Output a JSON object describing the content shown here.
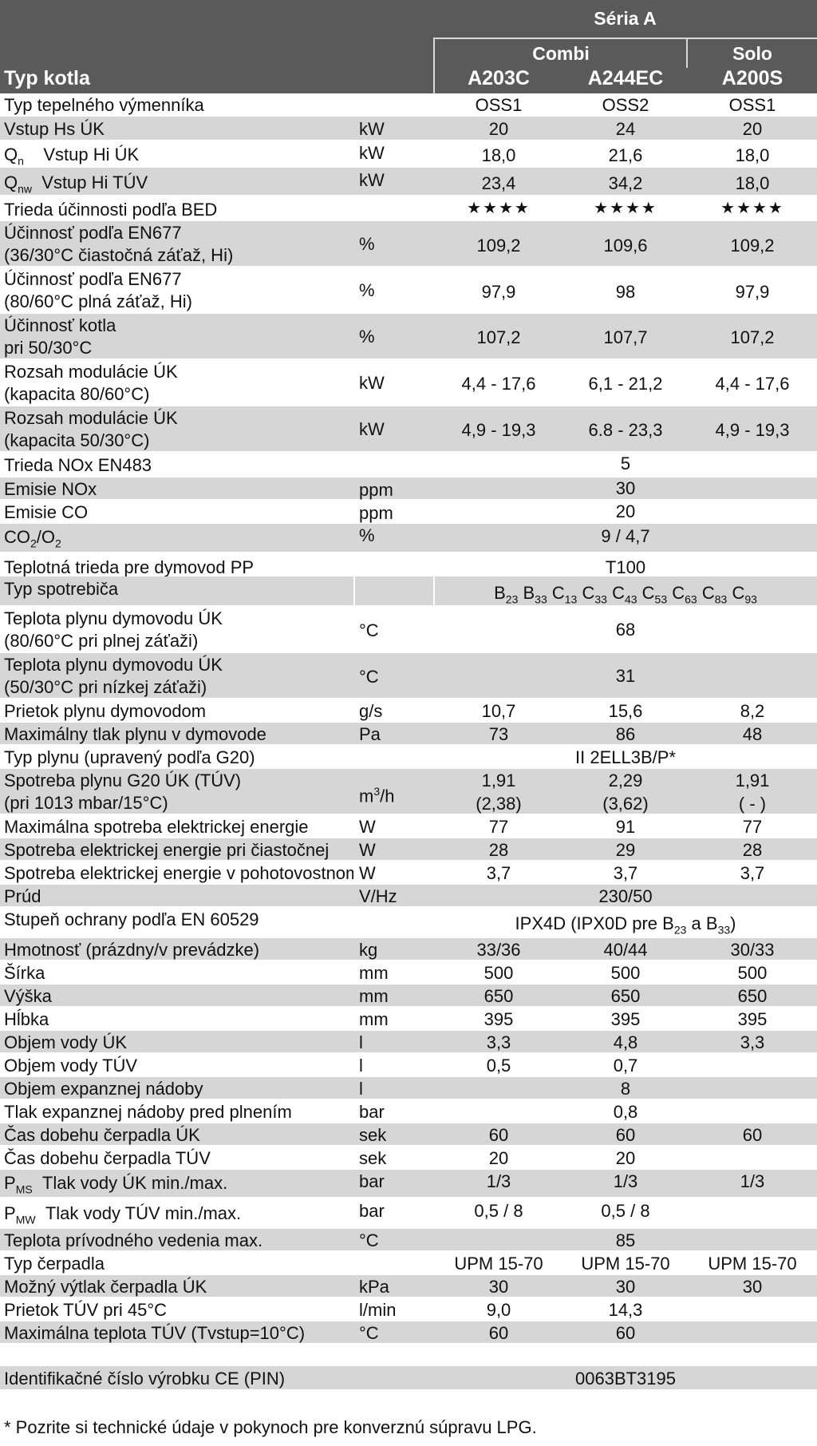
{
  "header": {
    "series": "Séria A",
    "group_combi": "Combi",
    "group_solo": "Solo",
    "typ_kotla": "Typ kotla",
    "models": [
      "A203C",
      "A244EC",
      "A200S"
    ]
  },
  "rows": {
    "r0": {
      "label": "Typ tepelného výmenníka",
      "unit": "",
      "v": [
        "OSS1",
        "OSS2",
        "OSS1"
      ]
    },
    "r1": {
      "label": "Vstup Hs ÚK",
      "unit": "kW",
      "v": [
        "20",
        "24",
        "20"
      ]
    },
    "r2": {
      "label_a": "Q",
      "label_sub": "n",
      "label_b": "Vstup Hi ÚK",
      "unit": "kW",
      "v": [
        "18,0",
        "21,6",
        "18,0"
      ]
    },
    "r3": {
      "label_a": "Q",
      "label_sub": "nw",
      "label_b": "Vstup Hi TÚV",
      "unit": "kW",
      "v": [
        "23,4",
        "34,2",
        "18,0"
      ]
    },
    "r4": {
      "label": "Trieda účinnosti podľa BED",
      "unit": "",
      "v": [
        "★★★★",
        "★★★★",
        "★★★★"
      ]
    },
    "r5": {
      "label": "Účinnosť podľa EN677",
      "label2": "(36/30°C čiastočná záťaž, Hi)",
      "unit": "%",
      "v": [
        "109,2",
        "109,6",
        "109,2"
      ]
    },
    "r6": {
      "label": "Účinnosť podľa EN677",
      "label2": "(80/60°C plná záťaž, Hi)",
      "unit": "%",
      "v": [
        "97,9",
        "98",
        "97,9"
      ]
    },
    "r7": {
      "label": "Účinnosť kotla",
      "label2": "pri 50/30°C",
      "unit": "%",
      "v": [
        "107,2",
        "107,7",
        "107,2"
      ]
    },
    "r8": {
      "label": "Rozsah modulácie ÚK",
      "label2": "(kapacita 80/60°C)",
      "unit": "kW",
      "v": [
        "4,4 - 17,6",
        "6,1 - 21,2",
        "4,4 - 17,6"
      ]
    },
    "r9": {
      "label": "Rozsah modulácie ÚK",
      "label2": "(kapacita 50/30°C)",
      "unit": "kW",
      "v": [
        "4,9 - 19,3",
        "6.8 - 23,3",
        "4,9 - 19,3"
      ]
    },
    "r10": {
      "label": "Trieda NOx EN483",
      "unit": "",
      "span": "5"
    },
    "r11": {
      "label": "Emisie NOx",
      "unit": "ppm",
      "span": "30"
    },
    "r12": {
      "label": "Emisie CO",
      "unit": "ppm",
      "span": "20"
    },
    "r13": {
      "label_a": "CO",
      "label_sub": "2",
      "label_b": "/O",
      "label_sub2": "2",
      "unit": "%",
      "span": "9 / 4,7"
    },
    "r14": {
      "label": "Teplotná trieda pre dymovod PP",
      "unit": "",
      "span": "T100"
    },
    "r15": {
      "label": "Typ spotrebiča",
      "unit": "",
      "span_parts": [
        [
          "B",
          "23"
        ],
        [
          "B",
          "33"
        ],
        [
          "C",
          "13"
        ],
        [
          "C",
          "33"
        ],
        [
          "C",
          "43"
        ],
        [
          "C",
          "53"
        ],
        [
          "C",
          "63"
        ],
        [
          "C",
          "83"
        ],
        [
          "C",
          "93"
        ]
      ]
    },
    "r16": {
      "label": "Teplota plynu dymovodu ÚK",
      "label2": "(80/60°C pri plnej záťaži)",
      "unit": "°C",
      "span": "68"
    },
    "r17": {
      "label": "Teplota plynu dymovodu ÚK",
      "label2": "(50/30°C pri nízkej záťaži)",
      "unit": "°C",
      "span": "31"
    },
    "r18": {
      "label": "Prietok plynu dymovodom",
      "unit": "g/s",
      "v": [
        "10,7",
        "15,6",
        "8,2"
      ]
    },
    "r19": {
      "label": "Maximálny tlak plynu v dymovode",
      "unit": "Pa",
      "v": [
        "73",
        "86",
        "48"
      ]
    },
    "r20": {
      "label": "Typ plynu (upravený podľa G20)",
      "unit": "",
      "span": "II 2ELL3B/P*"
    },
    "r21": {
      "label": "Spotreba plynu G20 ÚK  (TÚV)",
      "label2": "(pri 1013 mbar/15°C)",
      "unit_a": "m",
      "unit_sup": "3",
      "unit_b": "/h",
      "v": [
        "1,91",
        "2,29",
        "1,91"
      ],
      "v2": [
        "(2,38)",
        "(3,62)",
        "( - )"
      ]
    },
    "r22": {
      "label": "Maximálna spotreba elektrickej energie",
      "unit": "W",
      "v": [
        "77",
        "91",
        "77"
      ]
    },
    "r23": {
      "label": "Spotreba elektrickej energie pri čiastočnej",
      "unit": "W",
      "v": [
        "28",
        "29",
        "28"
      ]
    },
    "r24": {
      "label": "Spotreba elektrickej energie v pohotovostnom",
      "unit": "W",
      "v": [
        "3,7",
        "3,7",
        "3,7"
      ]
    },
    "r25": {
      "label": "Prúd",
      "unit": "V/Hz",
      "span": "230/50"
    },
    "r26": {
      "label": "Stupeň ochrany podľa EN 60529",
      "unit": "",
      "span_a": "IPX4D (IPX0D pre B",
      "span_sub1": "23",
      "span_b": " a B",
      "span_sub2": "33",
      "span_c": ")"
    },
    "r27": {
      "label": "Hmotnosť (prázdny/v prevádzke)",
      "unit": "kg",
      "v": [
        "33/36",
        "40/44",
        "30/33"
      ]
    },
    "r28": {
      "label": "Šírka",
      "unit": "mm",
      "v": [
        "500",
        "500",
        "500"
      ]
    },
    "r29": {
      "label": "Výška",
      "unit": "mm",
      "v": [
        "650",
        "650",
        "650"
      ]
    },
    "r30": {
      "label": "Hĺbka",
      "unit": "mm",
      "v": [
        "395",
        "395",
        "395"
      ]
    },
    "r31": {
      "label": "Objem vody ÚK",
      "unit": "l",
      "v": [
        "3,3",
        "4,8",
        "3,3"
      ]
    },
    "r32": {
      "label": "Objem vody TÚV",
      "unit": "l",
      "v": [
        "0,5",
        "0,7",
        ""
      ]
    },
    "r33": {
      "label": "Objem expanznej nádoby",
      "unit": "l",
      "span": "8"
    },
    "r34": {
      "label": "Tlak expanznej nádoby pred plnením",
      "unit": "bar",
      "span": "0,8"
    },
    "r35": {
      "label": "Čas dobehu čerpadla ÚK",
      "unit": "sek",
      "v": [
        "60",
        "60",
        "60"
      ]
    },
    "r36": {
      "label": "Čas dobehu čerpadla TÚV",
      "unit": "sek",
      "v": [
        "20",
        "20",
        ""
      ]
    },
    "r37": {
      "label_a": "P",
      "label_sub": "MS",
      "label_b": "Tlak vody ÚK min./max.",
      "unit": "bar",
      "v": [
        "1/3",
        "1/3",
        "1/3"
      ]
    },
    "r38": {
      "label_a": "P",
      "label_sub": "MW",
      "label_b": "Tlak vody TÚV min./max.",
      "unit": "bar",
      "v": [
        "0,5 / 8",
        "0,5 / 8",
        ""
      ]
    },
    "r39": {
      "label": "Teplota prívodného vedenia max.",
      "unit": "°C",
      "span": "85"
    },
    "r40": {
      "label": "Typ čerpadla",
      "unit": "",
      "v": [
        "UPM 15-70",
        "UPM 15-70",
        "UPM 15-70"
      ]
    },
    "r41": {
      "label": "Možný výtlak čerpadla ÚK",
      "unit": "kPa",
      "v": [
        "30",
        "30",
        "30"
      ]
    },
    "r42": {
      "label": "Prietok TÚV pri 45°C",
      "unit": "l/min",
      "v": [
        "9,0",
        "14,3",
        ""
      ]
    },
    "r43": {
      "label": "Maximálna teplota TÚV (Tvstup=10°C)",
      "unit": "°C",
      "v": [
        "60",
        "60",
        ""
      ]
    },
    "r44": {
      "label": "Identifikačné číslo výrobku CE (PIN)",
      "unit": "",
      "span": "0063BT3195"
    }
  },
  "footnote": "* Pozrite si technické údaje v pokynoch pre konverznú súpravu LPG."
}
